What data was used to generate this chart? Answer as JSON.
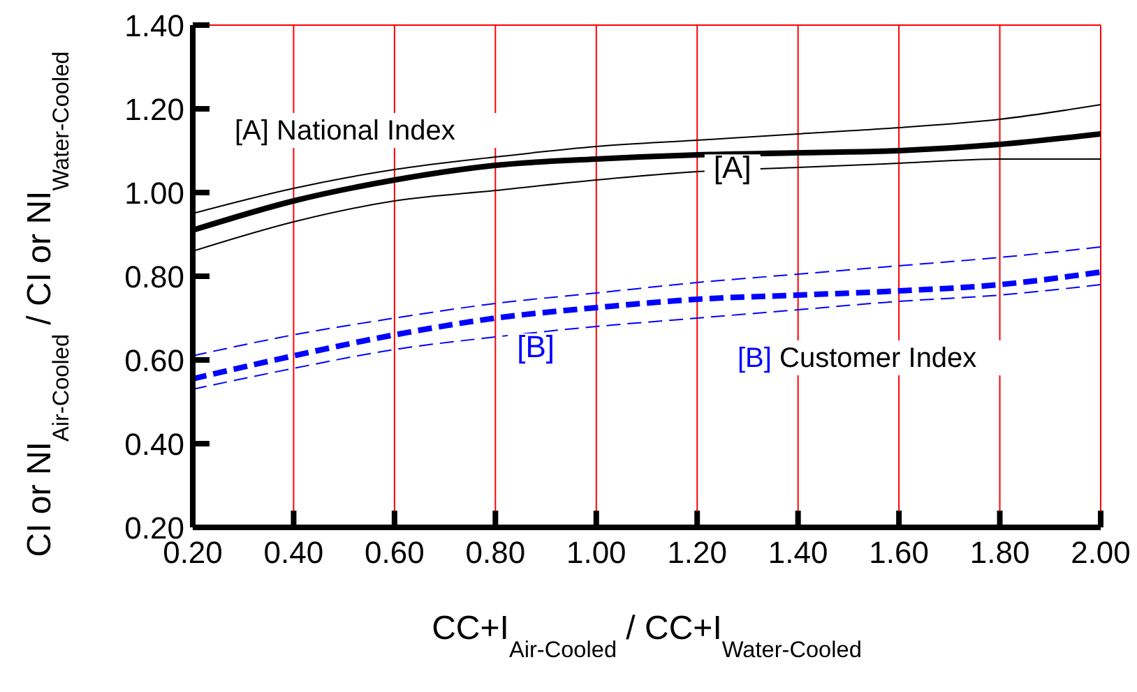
{
  "chart_data": {
    "type": "line",
    "xlabel": "CC+I$_{Air-Cooled}$ / CC+I$_{Water-Cooled}$",
    "ylabel": "CI or NI$_{Air-Cooled}$ / CI or NI$_{Water-Cooled}$",
    "x": [
      0.2,
      0.4,
      0.6,
      0.8,
      1.0,
      1.2,
      1.4,
      1.6,
      1.8,
      2.0
    ],
    "series": [
      {
        "color": "#000000",
        "line_style": "solid",
        "values": [
          0.91,
          0.98,
          1.03,
          1.065,
          1.08,
          1.09,
          1.095,
          1.1,
          1.115,
          1.14
        ]
      },
      {
        "color": "#0000ff",
        "line_style": "dashed",
        "values": [
          0.555,
          0.61,
          0.66,
          0.7,
          0.725,
          0.745,
          0.755,
          0.765,
          0.78,
          0.81
        ]
      },
      {
        "color": "#000000",
        "line_style": "solid",
        "values": [
          0.86,
          0.93,
          0.98,
          1.005,
          1.03,
          1.05,
          1.06,
          1.07,
          1.08,
          1.08
        ]
      },
      {
        "color": "#000000",
        "line_style": "solid",
        "values": [
          0.95,
          1.01,
          1.055,
          1.085,
          1.11,
          1.125,
          1.14,
          1.155,
          1.175,
          1.21
        ]
      },
      {
        "color": "#0000ff",
        "line_style": "dashed",
        "values": [
          0.53,
          0.58,
          0.625,
          0.655,
          0.68,
          0.7,
          0.72,
          0.74,
          0.755,
          0.78
        ]
      },
      {
        "color": "#0000ff",
        "line_style": "dashed",
        "values": [
          0.61,
          0.66,
          0.7,
          0.735,
          0.76,
          0.785,
          0.805,
          0.825,
          0.845,
          0.87
        ]
      }
    ],
    "annotations": [
      "[A] National Index",
      "[B] Customer Index",
      {
        "text": "[A]",
        "x": 1.27,
        "y": 1.095
      },
      {
        "text": "[B]",
        "x": 0.88,
        "y": 0.71
      }
    ],
    "xlim": [
      0.2,
      2.0
    ],
    "xticks": [
      {
        "value": 0.2,
        "label": "0.20"
      },
      {
        "value": 0.4,
        "label": "0.40"
      },
      {
        "value": 0.6,
        "label": "0.60"
      },
      {
        "value": 0.8,
        "label": "0.80"
      },
      {
        "value": 1.0,
        "label": "1.00"
      },
      {
        "value": 1.2,
        "label": "1.20"
      },
      {
        "value": 1.4,
        "label": "1.40"
      },
      {
        "value": 1.6,
        "label": "1.60"
      },
      {
        "value": 1.8,
        "label": "1.80"
      },
      {
        "value": 2.0,
        "label": "2.00"
      }
    ],
    "ylim": [
      0.2,
      1.4
    ],
    "yticks": [
      {
        "value": 0.2,
        "label": "0.20"
      },
      {
        "value": 0.4,
        "label": "0.40"
      },
      {
        "value": 0.6,
        "label": "0.60"
      },
      {
        "value": 0.8,
        "label": "0.80"
      },
      {
        "value": 1.0,
        "label": "1.00"
      },
      {
        "value": 1.2,
        "label": "1.20"
      },
      {
        "value": 1.4,
        "label": "1.40"
      }
    ],
    "grid": true,
    "marker": "none"
  }
}
